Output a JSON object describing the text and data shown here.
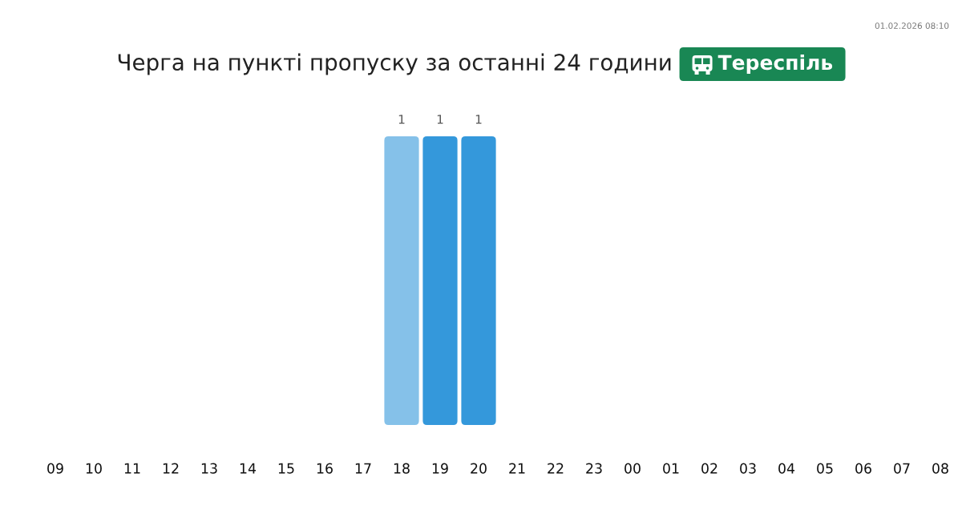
{
  "chart_data": {
    "type": "bar",
    "title": "Черга на пункті пропуску за останні 24 години",
    "subtitle": "Тереспіль",
    "annotations": [
      "01.02.2026 08:10"
    ],
    "categories": [
      "09",
      "10",
      "11",
      "12",
      "13",
      "14",
      "15",
      "16",
      "17",
      "18",
      "19",
      "20",
      "21",
      "22",
      "23",
      "00",
      "01",
      "02",
      "03",
      "04",
      "05",
      "06",
      "07",
      "08"
    ],
    "values": [
      null,
      null,
      null,
      null,
      null,
      null,
      null,
      null,
      null,
      1,
      1,
      1,
      null,
      null,
      null,
      null,
      null,
      null,
      null,
      null,
      null,
      null,
      null,
      null
    ],
    "colors": [
      null,
      null,
      null,
      null,
      null,
      null,
      null,
      null,
      null,
      "#85c1e9",
      "#3498db",
      "#3498db",
      null,
      null,
      null,
      null,
      null,
      null,
      null,
      null,
      null,
      null,
      null,
      null
    ],
    "ylim": [
      0,
      1
    ],
    "tick_labels": "x",
    "data_labels": true
  }
}
